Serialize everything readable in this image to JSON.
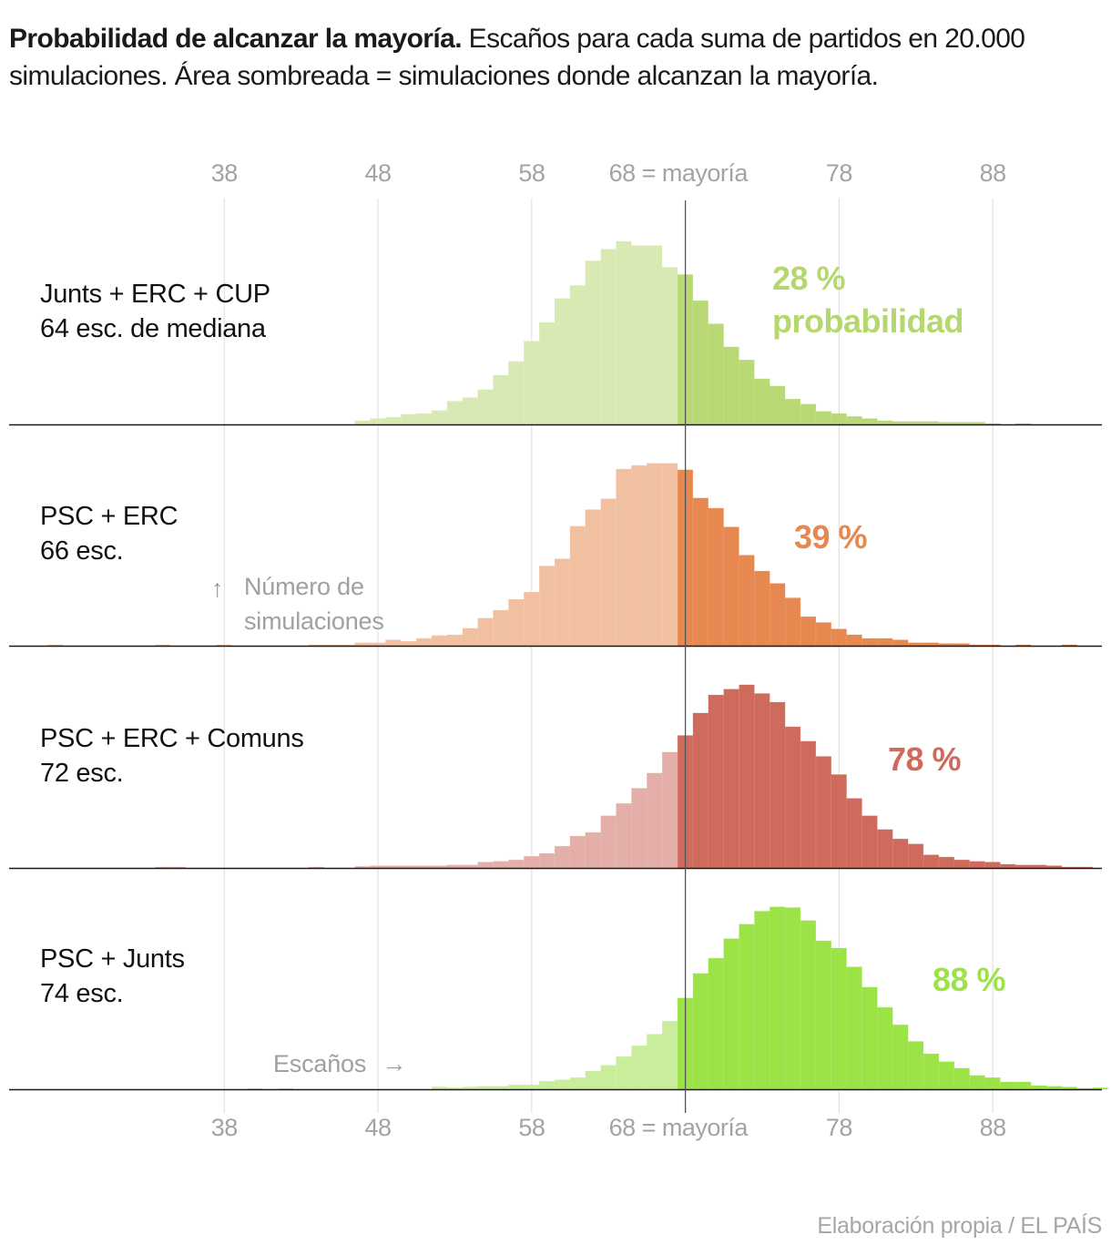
{
  "title": {
    "bold": "Probabilidad de alcanzar la mayoría.",
    "rest": " Escaños para cada suma de partidos en 20.000 simulaciones. Área sombreada = simulaciones donde alcanzan la mayoría."
  },
  "annotations": {
    "y_axis_arrow": "↑",
    "y_axis_label_line1": "Número de",
    "y_axis_label_line2": "simulaciones",
    "x_axis_label": "Escaños",
    "x_axis_arrow": "→"
  },
  "source": "Elaboración propia / EL PAÍS",
  "chart_data": {
    "type": "bar",
    "title": "Probabilidad de alcanzar la mayoría",
    "xlabel": "Escaños",
    "ylabel": "Número de simulaciones",
    "majority": 68,
    "majority_label": "68 = mayoría",
    "x_ticks": [
      38,
      48,
      58,
      68,
      78,
      88
    ],
    "x_tick_labels": [
      "38",
      "48",
      "58",
      "68 = mayoría",
      "78",
      "88"
    ],
    "xlim": [
      24,
      95.1
    ],
    "ylim": [
      0,
      1265
    ],
    "grid": true,
    "series": [
      {
        "name": "Junts + ERC + CUP",
        "subtitle": "64 esc. de mediana",
        "probability_label": "28 %",
        "probability_suffix": "probabilidad",
        "color_light": "#d9e9b3",
        "color_dark": "#b9d975",
        "label_color": "#b4d86e",
        "points": [
          [
            47,
            25
          ],
          [
            48,
            40
          ],
          [
            49,
            50
          ],
          [
            50,
            70
          ],
          [
            51,
            75
          ],
          [
            52,
            95
          ],
          [
            53,
            160
          ],
          [
            54,
            185
          ],
          [
            55,
            240
          ],
          [
            56,
            340
          ],
          [
            57,
            435
          ],
          [
            58,
            575
          ],
          [
            59,
            705
          ],
          [
            60,
            870
          ],
          [
            61,
            960
          ],
          [
            62,
            1130
          ],
          [
            63,
            1210
          ],
          [
            64,
            1265
          ],
          [
            65,
            1235
          ],
          [
            66,
            1235
          ],
          [
            67,
            1085
          ],
          [
            68,
            1035
          ],
          [
            69,
            855
          ],
          [
            70,
            695
          ],
          [
            71,
            535
          ],
          [
            72,
            445
          ],
          [
            73,
            315
          ],
          [
            74,
            265
          ],
          [
            75,
            175
          ],
          [
            76,
            140
          ],
          [
            77,
            90
          ],
          [
            78,
            75
          ],
          [
            79,
            55
          ],
          [
            80,
            40
          ],
          [
            81,
            25
          ],
          [
            82,
            20
          ],
          [
            83,
            20
          ],
          [
            84,
            20
          ],
          [
            85,
            15
          ],
          [
            86,
            15
          ],
          [
            87,
            15
          ],
          [
            88,
            5
          ],
          [
            90,
            5
          ]
        ]
      },
      {
        "name": "PSC + ERC",
        "subtitle": "66 esc.",
        "probability_label": "39 %",
        "probability_suffix": "",
        "color_light": "#f0c0a1",
        "color_dark": "#e6884f",
        "label_color": "#e6884f",
        "points": [
          [
            27,
            5
          ],
          [
            34,
            5
          ],
          [
            38,
            5
          ],
          [
            44,
            5
          ],
          [
            45,
            5
          ],
          [
            46,
            5
          ],
          [
            47,
            20
          ],
          [
            48,
            20
          ],
          [
            49,
            40
          ],
          [
            50,
            30
          ],
          [
            51,
            50
          ],
          [
            52,
            70
          ],
          [
            53,
            75
          ],
          [
            54,
            120
          ],
          [
            55,
            190
          ],
          [
            56,
            245
          ],
          [
            57,
            320
          ],
          [
            58,
            370
          ],
          [
            59,
            550
          ],
          [
            60,
            600
          ],
          [
            61,
            825
          ],
          [
            62,
            940
          ],
          [
            63,
            1015
          ],
          [
            64,
            1220
          ],
          [
            65,
            1245
          ],
          [
            66,
            1260
          ],
          [
            67,
            1260
          ],
          [
            68,
            1215
          ],
          [
            69,
            1020
          ],
          [
            70,
            950
          ],
          [
            71,
            820
          ],
          [
            72,
            625
          ],
          [
            73,
            515
          ],
          [
            74,
            430
          ],
          [
            75,
            330
          ],
          [
            76,
            200
          ],
          [
            77,
            160
          ],
          [
            78,
            115
          ],
          [
            79,
            75
          ],
          [
            80,
            50
          ],
          [
            81,
            50
          ],
          [
            82,
            40
          ],
          [
            83,
            20
          ],
          [
            84,
            20
          ],
          [
            85,
            15
          ],
          [
            86,
            15
          ],
          [
            87,
            5
          ],
          [
            88,
            5
          ],
          [
            90,
            5
          ],
          [
            93,
            5
          ]
        ]
      },
      {
        "name": "PSC + ERC + Comuns",
        "subtitle": "72 esc.",
        "probability_label": "78 %",
        "probability_suffix": "",
        "color_light": "#e4afa8",
        "color_dark": "#cf6b5c",
        "label_color": "#cf6b5c",
        "points": [
          [
            34,
            5
          ],
          [
            35,
            5
          ],
          [
            44,
            5
          ],
          [
            47,
            10
          ],
          [
            48,
            15
          ],
          [
            49,
            15
          ],
          [
            50,
            15
          ],
          [
            51,
            15
          ],
          [
            52,
            15
          ],
          [
            53,
            20
          ],
          [
            54,
            20
          ],
          [
            55,
            40
          ],
          [
            56,
            45
          ],
          [
            57,
            55
          ],
          [
            58,
            80
          ],
          [
            59,
            100
          ],
          [
            60,
            150
          ],
          [
            61,
            220
          ],
          [
            62,
            245
          ],
          [
            63,
            360
          ],
          [
            64,
            445
          ],
          [
            65,
            550
          ],
          [
            66,
            655
          ],
          [
            67,
            800
          ],
          [
            68,
            915
          ],
          [
            69,
            1070
          ],
          [
            70,
            1195
          ],
          [
            71,
            1235
          ],
          [
            72,
            1265
          ],
          [
            73,
            1205
          ],
          [
            74,
            1145
          ],
          [
            75,
            975
          ],
          [
            76,
            875
          ],
          [
            77,
            770
          ],
          [
            78,
            645
          ],
          [
            79,
            480
          ],
          [
            80,
            360
          ],
          [
            81,
            265
          ],
          [
            82,
            200
          ],
          [
            83,
            165
          ],
          [
            84,
            90
          ],
          [
            85,
            75
          ],
          [
            86,
            55
          ],
          [
            87,
            45
          ],
          [
            88,
            40
          ],
          [
            89,
            25
          ],
          [
            90,
            20
          ],
          [
            91,
            20
          ],
          [
            92,
            15
          ],
          [
            93,
            5
          ],
          [
            94,
            5
          ]
        ]
      },
      {
        "name": "PSC + Junts",
        "subtitle": "74 esc.",
        "probability_label": "88 %",
        "probability_suffix": "",
        "color_light": "#c9ed9b",
        "color_dark": "#9ce347",
        "label_color": "#9ce347",
        "points": [
          [
            40,
            5
          ],
          [
            42,
            5
          ],
          [
            52,
            15
          ],
          [
            53,
            10
          ],
          [
            54,
            15
          ],
          [
            55,
            20
          ],
          [
            56,
            20
          ],
          [
            57,
            30
          ],
          [
            58,
            30
          ],
          [
            59,
            55
          ],
          [
            60,
            65
          ],
          [
            61,
            80
          ],
          [
            62,
            125
          ],
          [
            63,
            165
          ],
          [
            64,
            225
          ],
          [
            65,
            300
          ],
          [
            66,
            380
          ],
          [
            67,
            470
          ],
          [
            68,
            630
          ],
          [
            69,
            800
          ],
          [
            70,
            905
          ],
          [
            71,
            1040
          ],
          [
            72,
            1140
          ],
          [
            73,
            1230
          ],
          [
            74,
            1260
          ],
          [
            75,
            1255
          ],
          [
            76,
            1165
          ],
          [
            77,
            1025
          ],
          [
            78,
            975
          ],
          [
            79,
            845
          ],
          [
            80,
            705
          ],
          [
            81,
            565
          ],
          [
            82,
            445
          ],
          [
            83,
            330
          ],
          [
            84,
            245
          ],
          [
            85,
            190
          ],
          [
            86,
            145
          ],
          [
            87,
            95
          ],
          [
            88,
            80
          ],
          [
            89,
            50
          ],
          [
            90,
            50
          ],
          [
            91,
            25
          ],
          [
            92,
            20
          ],
          [
            93,
            15
          ],
          [
            94,
            5
          ],
          [
            95,
            10
          ]
        ]
      }
    ]
  }
}
